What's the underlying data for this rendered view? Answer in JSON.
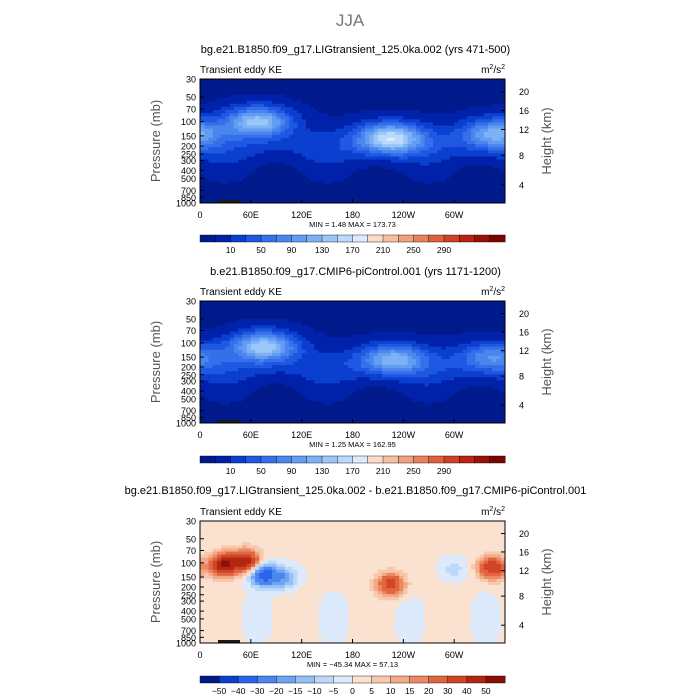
{
  "page_title": "JJA",
  "palette": {
    "abs": [
      "#001a8c",
      "#0022aa",
      "#0a3fd0",
      "#1f58e2",
      "#3570ea",
      "#4b86ef",
      "#639cf3",
      "#7db1f6",
      "#9ac6f8",
      "#b9dafa",
      "#dcebfb",
      "#fbdcc8",
      "#f6bfa2",
      "#f0a07c",
      "#e9805c",
      "#df5f3f",
      "#cf4025",
      "#b82412",
      "#991207",
      "#7a0602"
    ],
    "diff": [
      "#001a8c",
      "#0a3fd0",
      "#2b64e8",
      "#4b86ef",
      "#6fa4f4",
      "#95c1f7",
      "#bcd9fa",
      "#dceafb",
      "#fbe2d0",
      "#f8c8ac",
      "#f3aa86",
      "#ec8862",
      "#e26540",
      "#d04526",
      "#b42612",
      "#8c0e05"
    ]
  },
  "chart_data": [
    {
      "type": "heatmap",
      "title": "bg.e21.B1850.f09_g17.LIGtransient_125.0ka.002 (yrs 471-500)",
      "corner_left": "Transient eddy KE",
      "corner_right_base": "m",
      "corner_right_sup1": "2",
      "corner_right_mid": "/s",
      "corner_right_sup2": "2",
      "ylabel_left": "Pressure  (mb)",
      "ylabel_right": "Height  (km)",
      "y_ticks": [
        "30",
        "50",
        "70",
        "100",
        "150",
        "200",
        "250",
        "300",
        "400",
        "500",
        "700",
        "850",
        "1000"
      ],
      "y_right_ticks": [
        "20",
        "16",
        "12",
        "8",
        "4"
      ],
      "x_ticks": [
        "0",
        "60E",
        "120E",
        "180",
        "120W",
        "60W"
      ],
      "minmax_text": "MIN =     1.48   MAX = 173.73",
      "min": 1.48,
      "max": 173.73,
      "colorbar_labels": [
        "10",
        "50",
        "90",
        "130",
        "170",
        "210",
        "250",
        "290"
      ],
      "jets": [
        {
          "lon": 68,
          "p": 100,
          "amp": 150
        },
        {
          "lon": 225,
          "p": 160,
          "amp": 165
        },
        {
          "lon": 348,
          "p": 140,
          "amp": 120
        }
      ]
    },
    {
      "type": "heatmap",
      "title": "b.e21.B1850.f09_g17.CMIP6-piControl.001 (yrs 1171-1200)",
      "corner_left": "Transient eddy KE",
      "corner_right_base": "m",
      "corner_right_sup1": "2",
      "corner_right_mid": "/s",
      "corner_right_sup2": "2",
      "ylabel_left": "Pressure  (mb)",
      "ylabel_right": "Height  (km)",
      "y_ticks": [
        "30",
        "50",
        "70",
        "100",
        "150",
        "200",
        "250",
        "300",
        "400",
        "500",
        "700",
        "850",
        "1000"
      ],
      "y_right_ticks": [
        "20",
        "16",
        "12",
        "8",
        "4"
      ],
      "x_ticks": [
        "0",
        "60E",
        "120E",
        "180",
        "120W",
        "60W"
      ],
      "minmax_text": "MIN =     1.25   MAX = 162.95",
      "min": 1.25,
      "max": 162.95,
      "colorbar_labels": [
        "10",
        "50",
        "90",
        "130",
        "170",
        "210",
        "250",
        "290"
      ],
      "jets": [
        {
          "lon": 75,
          "p": 110,
          "amp": 155
        },
        {
          "lon": 228,
          "p": 160,
          "amp": 120
        },
        {
          "lon": 345,
          "p": 150,
          "amp": 85
        }
      ]
    },
    {
      "type": "heatmap",
      "title": "bg.e21.B1850.f09_g17.LIGtransient_125.0ka.002 - b.e21.B1850.f09_g17.CMIP6-piControl.001",
      "corner_left": "Transient eddy KE",
      "corner_right_base": "m",
      "corner_right_sup1": "2",
      "corner_right_mid": "/s",
      "corner_right_sup2": "2",
      "ylabel_left": "Pressure  (mb)",
      "ylabel_right": "Height  (km)",
      "y_ticks": [
        "30",
        "50",
        "70",
        "100",
        "150",
        "200",
        "250",
        "300",
        "400",
        "500",
        "700",
        "850",
        "1000"
      ],
      "y_right_ticks": [
        "20",
        "16",
        "12",
        "8",
        "4"
      ],
      "x_ticks": [
        "0",
        "60E",
        "120E",
        "180",
        "120W",
        "60W"
      ],
      "minmax_text": "MIN = −45.34   MAX =  57.13",
      "min": -45.34,
      "max": 57.13,
      "colorbar_labels": [
        "−50",
        "−40",
        "−30",
        "−20",
        "−15",
        "−10",
        "−5",
        "0",
        "5",
        "10",
        "15",
        "20",
        "30",
        "40",
        "50"
      ],
      "features": [
        {
          "lon": 28,
          "p": 105,
          "amp": 50
        },
        {
          "lon": 55,
          "p": 95,
          "amp": 45
        },
        {
          "lon": 75,
          "p": 140,
          "amp": -40
        },
        {
          "lon": 100,
          "p": 155,
          "amp": -18
        },
        {
          "lon": 225,
          "p": 185,
          "amp": 35
        },
        {
          "lon": 345,
          "p": 115,
          "amp": 40
        },
        {
          "lon": 300,
          "p": 120,
          "amp": -8
        }
      ]
    }
  ]
}
